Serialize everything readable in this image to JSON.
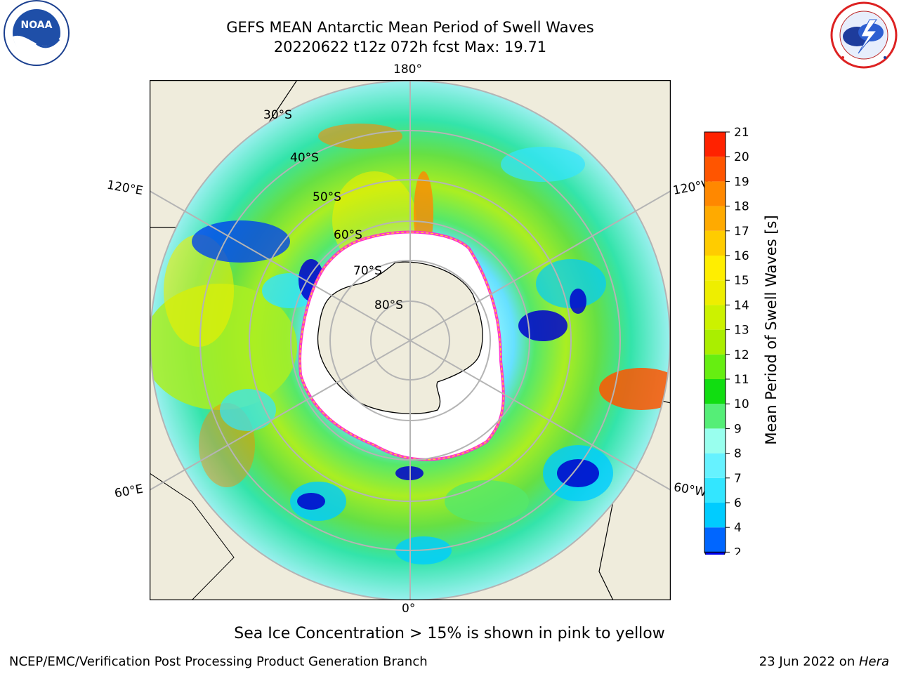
{
  "header": {
    "title_line1": "GEFS MEAN Antarctic Mean Period of Swell Waves",
    "title_line2": "20220622 t12z 072h fcst   Max: 19.71"
  },
  "logos": {
    "noaa": {
      "text": "NOAA",
      "ring_text": "NATIONAL OCEANIC AND ATMOSPHERIC ADMINISTRATION · U.S. DEPARTMENT OF COMMERCE"
    },
    "nws": {
      "ring_text": "NATIONAL WEATHER SERVICE"
    }
  },
  "map": {
    "projection": "south-polar-stereographic",
    "longitude_labels": {
      "top": "180°",
      "bottom": "0°",
      "left_upper": "120°E",
      "left_lower": "60°E",
      "right_upper": "120°W",
      "right_lower": "60°W"
    },
    "latitude_labels": [
      "30°S",
      "40°S",
      "50°S",
      "60°S",
      "70°S",
      "80°S"
    ],
    "colors": {
      "land": "#efecdc",
      "ocean_missing": "#ffffff",
      "grid": "#b4b4b4",
      "sea_ice_edge": [
        "#ff33cc",
        "#ffcc33"
      ]
    }
  },
  "colorbar": {
    "label": "Mean Period of Swell Waves [s]",
    "ticks": [
      "2",
      "4",
      "6",
      "7",
      "8",
      "9",
      "10",
      "11",
      "12",
      "13",
      "14",
      "15",
      "16",
      "17",
      "18",
      "19",
      "20",
      "21"
    ],
    "colors": [
      "#0066ff",
      "#00ccff",
      "#33e6ff",
      "#66f2ff",
      "#99ffee",
      "#55ee77",
      "#11dd11",
      "#66ee11",
      "#aaee00",
      "#ccf200",
      "#eeee00",
      "#ffee00",
      "#ffcc00",
      "#ffaa00",
      "#ff8800",
      "#ff5500",
      "#ff2200"
    ],
    "extend_min_color": "#0000ee"
  },
  "caption": "Sea Ice Concentration > 15% is shown in pink to yellow",
  "footer": {
    "left": "NCEP/EMC/Verification Post Processing Product Generation Branch",
    "right_date": "23 Jun 2022 on ",
    "right_machine": "Hera"
  }
}
